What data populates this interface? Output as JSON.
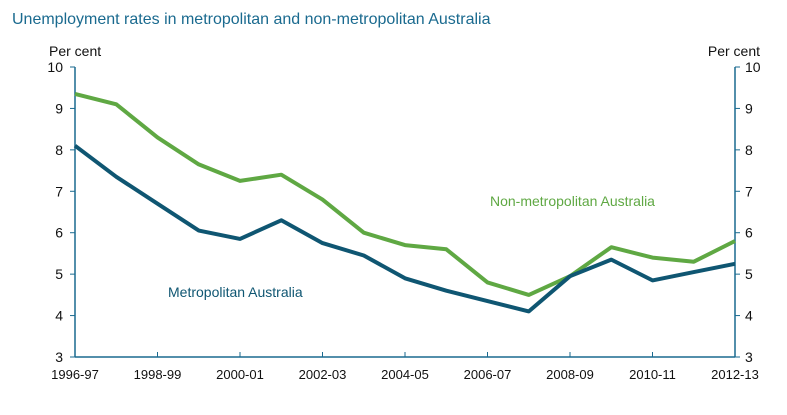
{
  "chart_data": {
    "type": "line",
    "title": "Unemployment rates in metropolitan and non-metropolitan Australia",
    "ylabel_left": "Per cent",
    "ylabel_right": "Per cent",
    "ylim": [
      3,
      10
    ],
    "yticks": [
      3,
      4,
      5,
      6,
      7,
      8,
      9,
      10
    ],
    "x": [
      "1996-97",
      "1997-98",
      "1998-99",
      "1999-00",
      "2000-01",
      "2001-02",
      "2002-03",
      "2003-04",
      "2004-05",
      "2005-06",
      "2006-07",
      "2007-08",
      "2008-09",
      "2009-10",
      "2010-11",
      "2011-12",
      "2012-13"
    ],
    "xtick_labels": [
      "1996-97",
      "1998-99",
      "2000-01",
      "2002-03",
      "2004-05",
      "2006-07",
      "2008-09",
      "2010-11",
      "2012-13"
    ],
    "grid": false,
    "series": [
      {
        "name": "Non-metropolitan Australia",
        "color": "#5fa843",
        "values": [
          9.35,
          9.1,
          8.3,
          7.65,
          7.25,
          7.4,
          6.8,
          6.0,
          5.7,
          5.6,
          4.8,
          4.5,
          4.95,
          5.65,
          5.4,
          5.3,
          5.8
        ]
      },
      {
        "name": "Metropolitan Australia",
        "color": "#0f5672",
        "values": [
          8.1,
          7.35,
          6.7,
          6.05,
          5.85,
          6.3,
          5.75,
          5.45,
          4.9,
          4.6,
          4.35,
          4.1,
          4.95,
          5.35,
          4.85,
          5.05,
          5.25
        ]
      }
    ],
    "title_color": "#1a6a8f",
    "axis_color": "#1a6a8f"
  }
}
